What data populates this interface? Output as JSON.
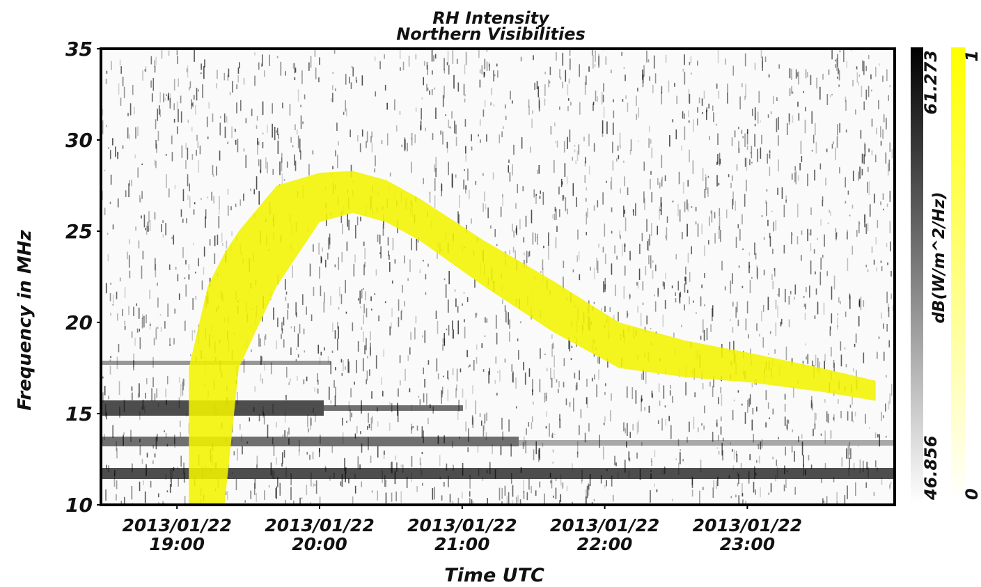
{
  "chart_data": {
    "type": "spectrogram",
    "title": "RH Intensity",
    "subtitle": "Northern Visibilities",
    "y_label": "Frequency in MHz",
    "x_label": "Time UTC",
    "ylim": [
      10,
      35
    ],
    "yticks": [
      10,
      15,
      20,
      25,
      30,
      35
    ],
    "xlim": [
      "2013-01-22T18:28",
      "2013-01-23T00:02"
    ],
    "xticks": [
      {
        "value": "2013-01-22T19:00",
        "label": [
          "2013/01/22",
          "19:00"
        ]
      },
      {
        "value": "2013-01-22T20:00",
        "label": [
          "2013/01/22",
          "20:00"
        ]
      },
      {
        "value": "2013-01-22T21:00",
        "label": [
          "2013/01/22",
          "21:00"
        ]
      },
      {
        "value": "2013-01-22T22:00",
        "label": [
          "2013/01/22",
          "22:00"
        ]
      },
      {
        "value": "2013-01-22T23:00",
        "label": [
          "2013/01/22",
          "23:00"
        ]
      }
    ],
    "track": {
      "color": "#f2f200",
      "x": [
        "2013-01-22T19:05",
        "2013-01-22T19:13",
        "2013-01-22T19:20",
        "2013-01-22T19:26",
        "2013-01-22T19:42",
        "2013-01-22T20:00",
        "2013-01-22T20:14",
        "2013-01-22T20:28",
        "2013-01-22T20:42",
        "2013-01-22T21:09",
        "2013-01-22T21:38",
        "2013-01-22T22:06",
        "2013-01-22T22:34",
        "2013-01-22T23:02",
        "2013-01-22T23:31",
        "2013-01-22T23:54"
      ],
      "low": [
        10,
        10,
        10,
        17.5,
        22,
        25.5,
        26,
        25.5,
        24.5,
        22,
        19.5,
        17.5,
        17,
        16.7,
        16.2,
        15.7
      ],
      "high": [
        17.5,
        22,
        23.8,
        25,
        27.5,
        28.2,
        28.3,
        27.8,
        26.8,
        24.5,
        22.3,
        20,
        19,
        18.3,
        17.5,
        16.8
      ]
    },
    "colorbars": [
      {
        "label": "dB(W/m^2/Hz)",
        "lim": [
          46.856,
          61.273
        ],
        "ticks": [
          46.856,
          61.273
        ],
        "colors": [
          "#ffffff",
          "#000000"
        ]
      },
      {
        "lim": [
          0,
          1
        ],
        "ticks": [
          0,
          1
        ],
        "colors": [
          "#ffffff",
          "#ffff00"
        ]
      }
    ]
  }
}
